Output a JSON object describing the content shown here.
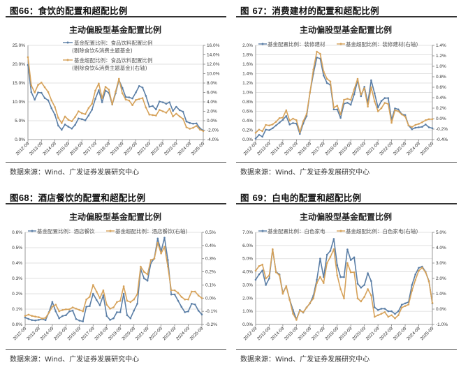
{
  "page": {
    "source_label": "数据来源：Wind、广发证券发展研究中心",
    "colors": {
      "blue": "#5a7ea6",
      "orange": "#d6a25a",
      "grid": "#d9d9d9",
      "axis": "#7f7f7f"
    }
  },
  "panels": [
    {
      "fig_prefix": "图",
      "fig_num": "66",
      "fig_caption": "：食饮的配置和超配比例",
      "chart_title": "主动偏股型基金配置比例",
      "legend": [
        "基金配置比例：食品饮料配置比例",
        "(剔除食饮&消费主题基金)",
        "基金超配比例：食品饮料配置比例",
        "(剔除食饮&消费主题基金)(右轴)"
      ],
      "source": "数据来源：Wind、广发证券发展研究中心"
    },
    {
      "fig_prefix": "图 ",
      "fig_num": "67",
      "fig_caption": "：消费建材的配置和超配比例",
      "chart_title": "主动偏股型基金配置比例",
      "legend": [
        "基金配置比例：装修建材",
        "基金超配比例：装修建材(右轴)"
      ],
      "source": "数据来源：Wind、广发证券发展研究中心"
    },
    {
      "fig_prefix": "图",
      "fig_num": "68",
      "fig_caption": "：酒店餐饮的配置和超配比例",
      "chart_title": "主动偏股型基金配置比例",
      "legend": [
        "基金配置比例：酒店餐饮",
        "基金超配比例：酒店餐饮(右轴)"
      ],
      "source": "数据来源：Wind、广发证券发展研究中心"
    },
    {
      "fig_prefix": "图 ",
      "fig_num": "69",
      "fig_caption": "：白电的配置和超配比例",
      "chart_title": "主动偏股型基金配置比例",
      "legend": [
        "基金配置比例：白色家电",
        "基金超配比例：白色家电(右轴)"
      ],
      "source": "数据来源：Wind、广发证券发展研究中心"
    }
  ],
  "chart_data": [
    {
      "type": "line",
      "title": "主动偏股型基金配置比例",
      "x_tick_labels": [
        "2012-09",
        "2013-09",
        "2014-09",
        "2015-09",
        "2016-09",
        "2017-09",
        "2018-09",
        "2019-09",
        "2020-09",
        "2021-09",
        "2022-09",
        "2023-09",
        "2024-09",
        "2025-09"
      ],
      "left_axis": {
        "ticks": [
          "0.0%",
          "5.0%",
          "10.0%",
          "15.0%",
          "20.0%",
          "25.0%"
        ],
        "min": 0,
        "max": 25
      },
      "right_axis": {
        "ticks": [
          "-4.0%",
          "-2.0%",
          "0.0%",
          "2.0%",
          "4.0%",
          "6.0%",
          "8.0%",
          "10.0%",
          "12.0%",
          "14.0%",
          "16.0%"
        ],
        "min": -4,
        "max": 16
      },
      "series": [
        {
          "name": "基金配置比例：食品饮料配置比例(剔除食饮&消费主题基金)",
          "axis": "left",
          "color": "#5a7ea6",
          "values": [
            19.8,
            12.6,
            10.6,
            12.5,
            12.4,
            11.0,
            10.4,
            8.3,
            6.6,
            3.7,
            2.6,
            4.0,
            3.4,
            2.9,
            3.9,
            5.6,
            5.4,
            5.1,
            6.4,
            7.9,
            10.8,
            13.1,
            9.9,
            13.0,
            12.4,
            9.3,
            12.3,
            15.8,
            13.7,
            11.3,
            11.2,
            10.9,
            12.5,
            14.2,
            13.8,
            11.6,
            8.7,
            8.9,
            8.0,
            10.1,
            9.9,
            9.5,
            9.9,
            7.6,
            8.7,
            7.8,
            7.4,
            4.8,
            4.4,
            4.2,
            4.3,
            3.0,
            2.4
          ]
        },
        {
          "name": "基金超配比例：食品饮料配置比例(剔除食饮&消费主题基金)(右轴)",
          "axis": "right",
          "color": "#d6a25a",
          "values": [
            13.5,
            7.5,
            6.0,
            7.6,
            8.1,
            7.1,
            6.1,
            4.3,
            2.9,
            0.6,
            -0.5,
            0.9,
            0.2,
            -0.1,
            0.8,
            2.0,
            1.6,
            1.4,
            2.7,
            3.6,
            6.4,
            7.9,
            4.8,
            7.2,
            6.6,
            3.5,
            6.2,
            8.9,
            5.8,
            4.5,
            4.3,
            3.3,
            4.4,
            4.6,
            4.8,
            2.8,
            1.3,
            1.2,
            1.1,
            2.3,
            2.0,
            1.7,
            2.5,
            0.9,
            1.5,
            0.9,
            0.4,
            -1.4,
            -1.7,
            -1.5,
            -1.1,
            -1.9,
            -2.2
          ]
        }
      ]
    },
    {
      "type": "line",
      "title": "主动偏股型基金配置比例",
      "x_tick_labels": [
        "2012-09",
        "2013-09",
        "2014-09",
        "2015-09",
        "2016-09",
        "2017-09",
        "2018-09",
        "2019-09",
        "2020-09",
        "2021-09",
        "2022-09",
        "2023-09",
        "2024-09",
        "2025-09"
      ],
      "left_axis": {
        "ticks": [
          "0.0%",
          "0.2%",
          "0.4%",
          "0.6%",
          "0.8%",
          "1.0%",
          "1.2%",
          "1.4%",
          "1.6%",
          "1.8%",
          "2.0%"
        ],
        "min": 0,
        "max": 2.0
      },
      "right_axis": {
        "ticks": [
          "-0.4%",
          "-0.2%",
          "0.0%",
          "0.2%",
          "0.4%",
          "0.6%",
          "0.8%",
          "1.0%",
          "1.2%",
          "1.4%"
        ],
        "min": -0.4,
        "max": 1.4
      },
      "series": [
        {
          "name": "基金配置比例：装修建材",
          "axis": "left",
          "color": "#5a7ea6",
          "values": [
            0.02,
            0.1,
            0.06,
            0.21,
            0.2,
            0.24,
            0.3,
            0.36,
            0.42,
            0.5,
            0.32,
            0.35,
            0.34,
            0.12,
            0.34,
            0.5,
            1.0,
            1.4,
            1.74,
            1.72,
            1.36,
            1.2,
            1.16,
            0.64,
            0.64,
            0.46,
            0.76,
            0.78,
            0.74,
            0.96,
            1.26,
            0.92,
            1.12,
            0.78,
            1.26,
            0.98,
            0.68,
            0.82,
            0.88,
            0.88,
            0.42,
            0.66,
            0.64,
            0.54,
            0.52,
            0.3,
            0.22,
            0.25,
            0.26,
            0.27,
            0.32,
            0.26,
            0.24
          ]
        },
        {
          "name": "基金超配比例：装修建材(右轴)",
          "axis": "right",
          "color": "#d6a25a",
          "values": [
            -0.27,
            -0.21,
            -0.24,
            -0.12,
            -0.13,
            -0.11,
            -0.06,
            0.01,
            0.02,
            0.16,
            -0.04,
            0.0,
            -0.03,
            -0.26,
            -0.05,
            0.09,
            0.5,
            0.94,
            1.28,
            1.24,
            0.9,
            0.76,
            0.71,
            0.21,
            0.25,
            0.08,
            0.36,
            0.38,
            0.36,
            0.56,
            0.76,
            0.46,
            0.58,
            0.23,
            0.6,
            0.33,
            0.14,
            0.2,
            0.3,
            0.28,
            -0.08,
            0.16,
            0.14,
            0.08,
            0.04,
            -0.13,
            -0.16,
            -0.12,
            -0.1,
            -0.07,
            -0.03,
            -0.01,
            -0.01
          ]
        }
      ]
    },
    {
      "type": "line",
      "title": "主动偏股型基金配置比例",
      "x_tick_labels": [
        "2012-09",
        "2013-09",
        "2014-09",
        "2015-09",
        "2016-09",
        "2017-09",
        "2018-09",
        "2019-09",
        "2020-09",
        "2021-09",
        "2022-09",
        "2023-09",
        "2024-09",
        "2025-09"
      ],
      "left_axis": {
        "ticks": [
          "0.0%",
          "0.1%",
          "0.2%",
          "0.3%",
          "0.4%",
          "0.5%",
          "0.6%"
        ],
        "min": 0,
        "max": 0.6
      },
      "right_axis": {
        "ticks": [
          "-0.2%",
          "-0.1%",
          "0.0%",
          "0.1%",
          "0.2%",
          "0.3%",
          "0.4%",
          "0.5%"
        ],
        "min": -0.2,
        "max": 0.5
      },
      "series": [
        {
          "name": "基金配置比例：酒店餐饮",
          "axis": "left",
          "color": "#5a7ea6",
          "values": [
            0.045,
            0.036,
            0.028,
            0.026,
            0.03,
            0.035,
            0.028,
            0.08,
            0.147,
            0.085,
            0.04,
            0.055,
            0.06,
            0.085,
            0.09,
            0.035,
            0.025,
            0.02,
            0.115,
            0.12,
            0.2,
            0.16,
            0.125,
            0.19,
            0.055,
            0.03,
            0.04,
            0.08,
            0.08,
            0.2,
            0.06,
            0.04,
            0.09,
            0.135,
            0.36,
            0.3,
            0.285,
            0.4,
            0.43,
            0.56,
            0.475,
            0.565,
            0.42,
            0.195,
            0.195,
            0.155,
            0.115,
            0.08,
            0.085,
            0.135,
            0.13,
            0.09,
            0.065
          ]
        },
        {
          "name": "基金超配比例：酒店餐饮(右轴)",
          "axis": "right",
          "color": "#d6a25a",
          "values": [
            -0.135,
            -0.125,
            -0.135,
            -0.14,
            -0.145,
            -0.155,
            -0.15,
            -0.11,
            -0.065,
            -0.05,
            -0.1,
            -0.09,
            -0.085,
            -0.085,
            -0.07,
            -0.08,
            -0.09,
            -0.1,
            -0.01,
            0.01,
            0.1,
            0.05,
            0.0,
            0.06,
            -0.05,
            -0.08,
            -0.07,
            -0.03,
            -0.02,
            0.09,
            -0.02,
            -0.03,
            -0.01,
            0.03,
            0.24,
            0.2,
            0.18,
            0.29,
            0.3,
            0.42,
            0.34,
            0.39,
            0.24,
            0.06,
            0.06,
            0.04,
            0.01,
            -0.01,
            -0.01,
            0.05,
            0.05,
            0.02,
            0.0
          ]
        }
      ]
    },
    {
      "type": "line",
      "title": "主动偏股型基金配置比例",
      "x_tick_labels": [
        "2012-09",
        "2013-09",
        "2014-09",
        "2015-09",
        "2016-09",
        "2017-09",
        "2018-09",
        "2019-09",
        "2020-09",
        "2021-09",
        "2022-09",
        "2023-09",
        "2024-09",
        "2025-09"
      ],
      "left_axis": {
        "ticks": [
          "0.0%",
          "1.0%",
          "2.0%",
          "3.0%",
          "4.0%",
          "5.0%",
          "6.0%",
          "7.0%"
        ],
        "min": 0,
        "max": 7.0
      },
      "right_axis": {
        "ticks": [
          "-1.0%",
          "0.0%",
          "1.0%",
          "2.0%",
          "3.0%",
          "4.0%",
          "5.0%"
        ],
        "min": -1.0,
        "max": 5.0
      },
      "series": [
        {
          "name": "基金配置比例：白色家电",
          "axis": "left",
          "color": "#5a7ea6",
          "values": [
            3.4,
            3.8,
            4.1,
            3.0,
            3.5,
            5.7,
            4.0,
            3.8,
            2.4,
            2.9,
            1.9,
            1.1,
            0.4,
            1.1,
            0.9,
            1.3,
            1.6,
            2.2,
            3.4,
            5.0,
            3.6,
            5.3,
            5.6,
            6.5,
            4.5,
            3.6,
            3.6,
            5.7,
            4.9,
            5.1,
            3.1,
            2.8,
            3.0,
            3.9,
            3.3,
            1.3,
            1.1,
            1.2,
            1.2,
            1.0,
            1.0,
            0.8,
            1.0,
            1.5,
            1.6,
            1.7,
            3.0,
            3.8,
            4.3,
            4.4,
            4.0,
            3.3,
            1.6
          ]
        },
        {
          "name": "基金超配比例：白色家电(右轴)",
          "axis": "right",
          "color": "#d6a25a",
          "values": [
            2.5,
            2.8,
            2.9,
            2.0,
            2.2,
            3.9,
            2.4,
            2.2,
            1.0,
            1.5,
            0.6,
            -0.3,
            -0.7,
            -0.1,
            -0.2,
            0.1,
            0.4,
            0.7,
            1.7,
            2.1,
            1.7,
            3.0,
            3.4,
            3.9,
            2.2,
            1.3,
            0.7,
            3.0,
            2.4,
            2.4,
            0.7,
            0.5,
            0.8,
            1.3,
            0.9,
            -0.5,
            -0.4,
            -0.3,
            -0.2,
            -0.5,
            -0.4,
            -0.6,
            -0.4,
            0.1,
            0.2,
            0.3,
            1.2,
            1.9,
            2.5,
            2.7,
            2.4,
            1.8,
            0.4
          ]
        }
      ]
    }
  ]
}
